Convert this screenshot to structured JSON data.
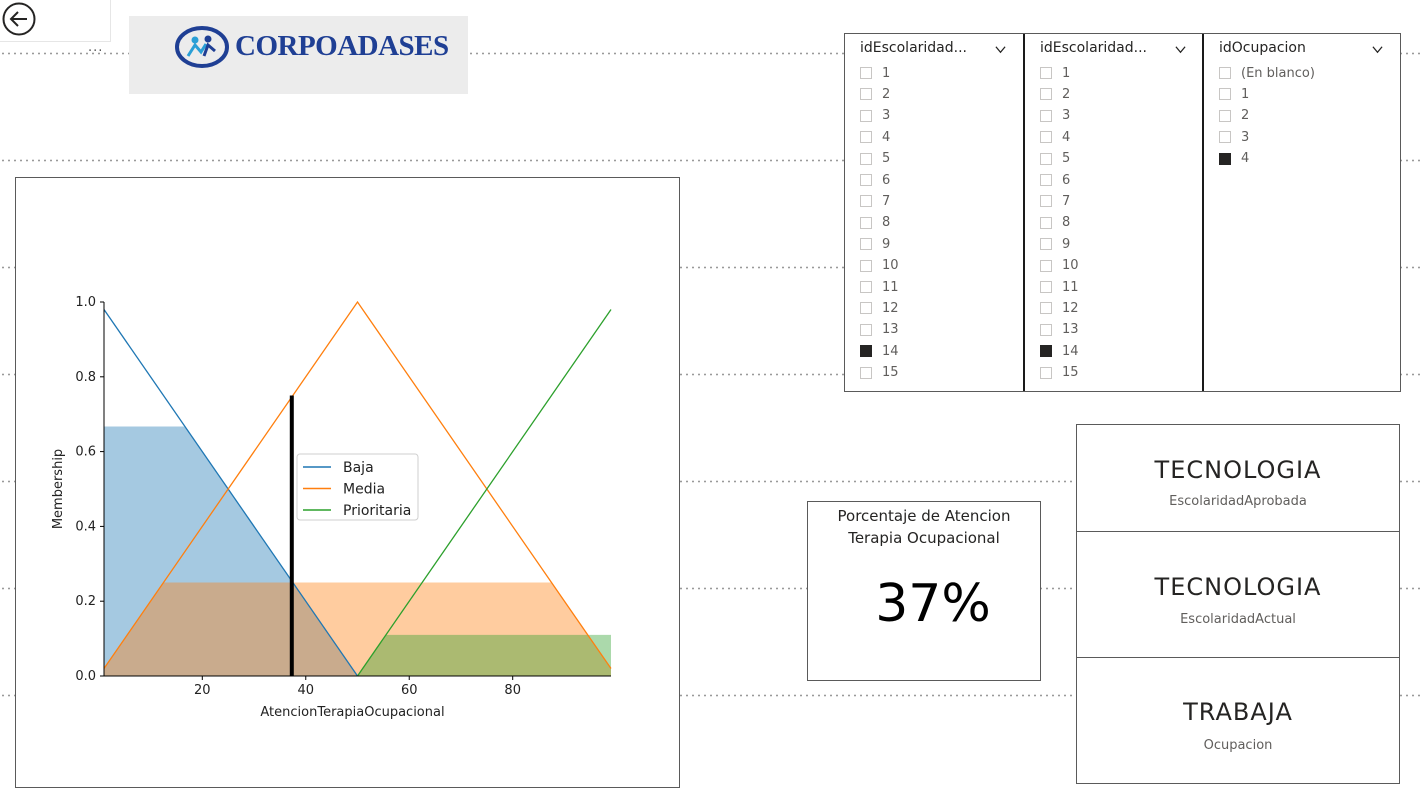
{
  "logo": {
    "text": "CORPOADASES"
  },
  "more_options": "...",
  "chart_data": {
    "type": "line",
    "xlabel": "AtencionTerapiaOcupacional",
    "ylabel": "Membership",
    "xlim": [
      1,
      99
    ],
    "ylim": [
      0,
      1
    ],
    "x_ticks": [
      "20",
      "40",
      "60",
      "80"
    ],
    "y_ticks": [
      "0.0",
      "0.2",
      "0.4",
      "0.6",
      "0.8",
      "1.0"
    ],
    "legend_placement": "center",
    "series": [
      {
        "name": "Baja",
        "color": "#1f77b4",
        "points": [
          [
            1,
            0.98
          ],
          [
            50,
            0
          ]
        ]
      },
      {
        "name": "Media",
        "color": "#ff7f0e",
        "points": [
          [
            1,
            0.02
          ],
          [
            50,
            1
          ],
          [
            99,
            0.02
          ]
        ]
      },
      {
        "name": "Prioritaria",
        "color": "#2ca02c",
        "points": [
          [
            50,
            0
          ],
          [
            99,
            0.98
          ]
        ]
      }
    ],
    "activations": [
      {
        "series": "Baja",
        "level": 0.667,
        "color": "#1f77b4"
      },
      {
        "series": "Media",
        "level": 0.25,
        "color": "#ff7f0e"
      },
      {
        "series": "Prioritaria",
        "level": 0.11,
        "color": "#2ca02c"
      }
    ],
    "result_x": 37.3,
    "result_membership": 0.75
  },
  "slicers": [
    {
      "header": "idEscolaridad...",
      "items": [
        "1",
        "2",
        "3",
        "4",
        "5",
        "6",
        "7",
        "8",
        "9",
        "10",
        "11",
        "12",
        "13",
        "14",
        "15"
      ],
      "selected": [
        "14"
      ]
    },
    {
      "header": "idEscolaridad...",
      "items": [
        "1",
        "2",
        "3",
        "4",
        "5",
        "6",
        "7",
        "8",
        "9",
        "10",
        "11",
        "12",
        "13",
        "14",
        "15"
      ],
      "selected": [
        "14"
      ]
    },
    {
      "header": "idOcupacion",
      "items": [
        "(En blanco)",
        "1",
        "2",
        "3",
        "4"
      ],
      "selected": [
        "4"
      ]
    }
  ],
  "kpi": {
    "title_line1": "Porcentaje de Atencion",
    "title_line2": "Terapia Ocupacional",
    "value": "37%"
  },
  "cards": [
    {
      "value": "TECNOLOGIA",
      "label": "EscolaridadAprobada"
    },
    {
      "value": "TECNOLOGIA",
      "label": "EscolaridadActual"
    },
    {
      "value": "TRABAJA",
      "label": "Ocupacion"
    }
  ]
}
